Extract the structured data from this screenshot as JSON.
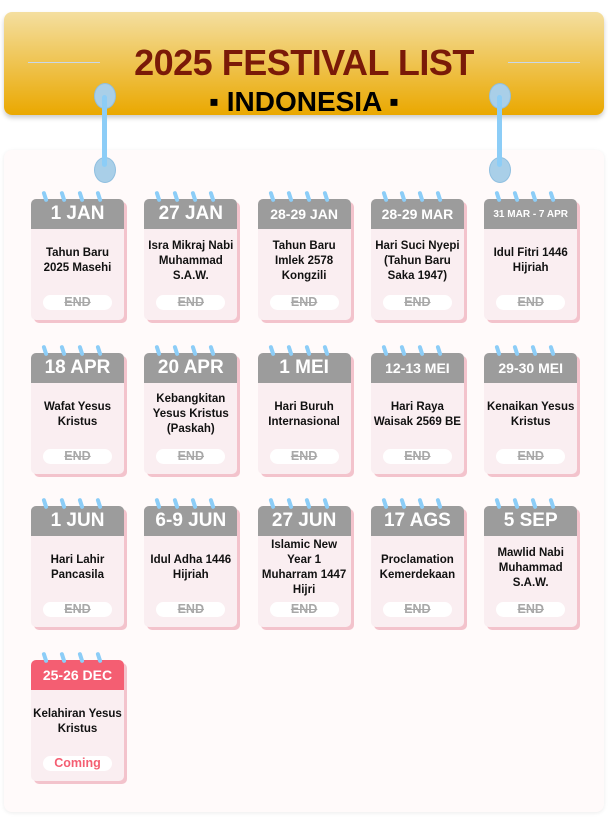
{
  "header": {
    "title": "2025 FESTIVAL LIST",
    "subtitle": "▪ INDONESIA ▪"
  },
  "colors": {
    "banner": "#eaa800",
    "title": "#7a1a08",
    "ended_header": "#9c9c9c",
    "coming_header": "#f45e72"
  },
  "festivals": [
    {
      "date": "1 JAN",
      "name": "Tahun Baru 2025 Masehi",
      "status": "END"
    },
    {
      "date": "27 JAN",
      "name": "Isra Mikraj Nabi Muhammad S.A.W.",
      "status": "END"
    },
    {
      "date": "28-29 JAN",
      "name": "Tahun Baru Imlek 2578 Kongzili",
      "status": "END"
    },
    {
      "date": "28-29 MAR",
      "name": "Hari Suci Nyepi (Tahun Baru Saka 1947)",
      "status": "END"
    },
    {
      "date": "31 MAR - 7 APR",
      "name": "Idul Fitri 1446 Hijriah",
      "status": "END"
    },
    {
      "date": "18 APR",
      "name": "Wafat Yesus Kristus",
      "status": "END"
    },
    {
      "date": "20 APR",
      "name": "Kebangkitan Yesus Kristus (Paskah)",
      "status": "END"
    },
    {
      "date": "1 MEI",
      "name": "Hari Buruh Internasional",
      "status": "END"
    },
    {
      "date": "12-13 MEI",
      "name": "Hari Raya Waisak 2569 BE",
      "status": "END"
    },
    {
      "date": "29-30 MEI",
      "name": "Kenaikan Yesus Kristus",
      "status": "END"
    },
    {
      "date": "1 JUN",
      "name": "Hari Lahir Pancasila",
      "status": "END"
    },
    {
      "date": "6-9 JUN",
      "name": "Idul Adha 1446 Hijriah",
      "status": "END"
    },
    {
      "date": "27 JUN",
      "name": "Islamic New Year 1 Muharram 1447 Hijri",
      "status": "END"
    },
    {
      "date": "17 AGS",
      "name": "Proclamation Kemerdekaan",
      "status": "END"
    },
    {
      "date": "5 SEP",
      "name": "Mawlid Nabi Muhammad S.A.W.",
      "status": "END"
    },
    {
      "date": "25-26 DEC",
      "name": "Kelahiran Yesus Kristus",
      "status": "Coming"
    }
  ]
}
